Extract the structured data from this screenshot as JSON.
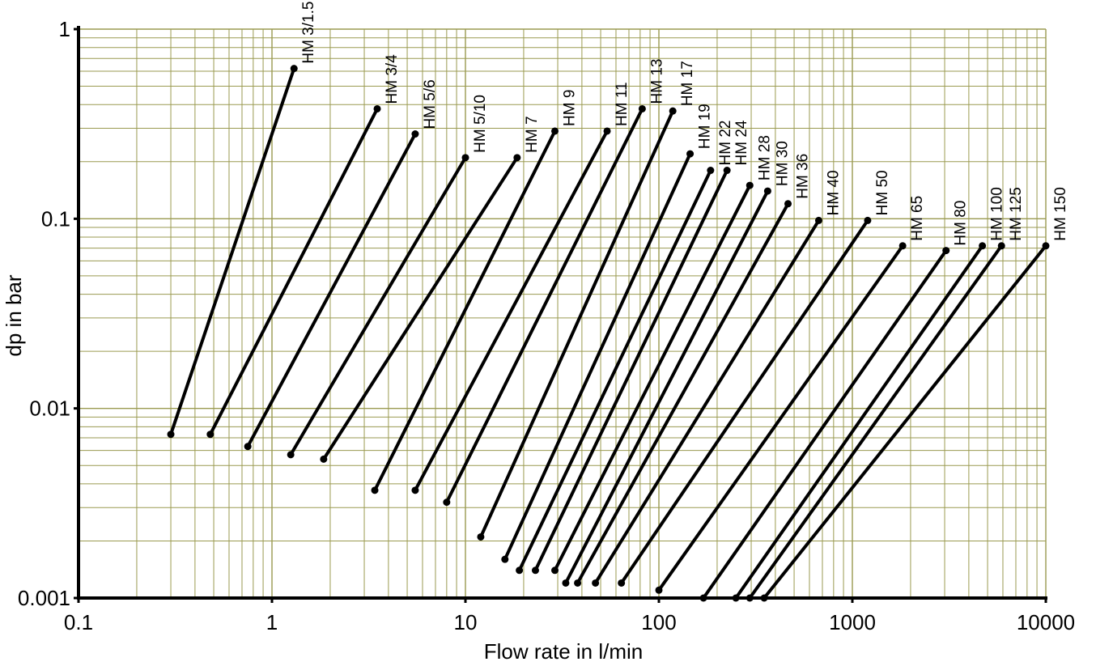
{
  "chart_data": {
    "type": "line",
    "title": "",
    "xlabel": "Flow rate in l/min",
    "ylabel": "dp in bar",
    "x_scale": "log",
    "y_scale": "log",
    "xlim": [
      0.1,
      10000
    ],
    "ylim": [
      0.001,
      1
    ],
    "x_ticks": [
      "0.1",
      "1",
      "10",
      "100",
      "1000",
      "10000"
    ],
    "y_ticks": [
      "0.001",
      "0.01",
      "0.1",
      "1"
    ],
    "grid": true,
    "colors": {
      "grid": "#9a9a50",
      "line": "#000000",
      "axis": "#000000"
    },
    "series": [
      {
        "name": "HM 3/1.5",
        "points": [
          [
            0.3,
            0.0073
          ],
          [
            1.3,
            0.62
          ]
        ]
      },
      {
        "name": "HM 3/4",
        "points": [
          [
            0.48,
            0.0073
          ],
          [
            3.5,
            0.38
          ]
        ]
      },
      {
        "name": "HM 5/6",
        "points": [
          [
            0.75,
            0.0063
          ],
          [
            5.5,
            0.28
          ]
        ]
      },
      {
        "name": "HM 5/10",
        "points": [
          [
            1.25,
            0.0057
          ],
          [
            10,
            0.21
          ]
        ]
      },
      {
        "name": "HM 7",
        "points": [
          [
            1.85,
            0.0054
          ],
          [
            18.5,
            0.21
          ]
        ]
      },
      {
        "name": "HM 9",
        "points": [
          [
            3.4,
            0.0037
          ],
          [
            29,
            0.29
          ]
        ]
      },
      {
        "name": "HM 11",
        "points": [
          [
            5.5,
            0.0037
          ],
          [
            54,
            0.29
          ]
        ]
      },
      {
        "name": "HM 13",
        "points": [
          [
            8,
            0.0032
          ],
          [
            82,
            0.38
          ]
        ]
      },
      {
        "name": "HM 17",
        "points": [
          [
            12,
            0.0021
          ],
          [
            118,
            0.37
          ]
        ]
      },
      {
        "name": "HM 19",
        "points": [
          [
            16,
            0.0016
          ],
          [
            145,
            0.22
          ]
        ]
      },
      {
        "name": "HM 22",
        "points": [
          [
            19,
            0.0014
          ],
          [
            185,
            0.18
          ]
        ]
      },
      {
        "name": "HM 24",
        "points": [
          [
            23,
            0.0014
          ],
          [
            225,
            0.18
          ]
        ]
      },
      {
        "name": "HM 28",
        "points": [
          [
            29,
            0.0014
          ],
          [
            295,
            0.15
          ]
        ]
      },
      {
        "name": "HM 30",
        "points": [
          [
            33,
            0.0012
          ],
          [
            365,
            0.14
          ]
        ]
      },
      {
        "name": "HM 36",
        "points": [
          [
            38,
            0.0012
          ],
          [
            465,
            0.12
          ]
        ]
      },
      {
        "name": "HM 40",
        "points": [
          [
            47,
            0.0012
          ],
          [
            670,
            0.098
          ]
        ]
      },
      {
        "name": "HM 50",
        "points": [
          [
            64,
            0.0012
          ],
          [
            1200,
            0.098
          ]
        ]
      },
      {
        "name": "HM 65",
        "points": [
          [
            100,
            0.0011
          ],
          [
            1820,
            0.072
          ]
        ]
      },
      {
        "name": "HM 80",
        "points": [
          [
            170,
            0.001
          ],
          [
            3050,
            0.068
          ]
        ]
      },
      {
        "name": "HM 100",
        "points": [
          [
            250,
            0.001
          ],
          [
            4700,
            0.072
          ]
        ]
      },
      {
        "name": "HM 125",
        "points": [
          [
            295,
            0.001
          ],
          [
            5900,
            0.072
          ]
        ]
      },
      {
        "name": "HM 150",
        "points": [
          [
            350,
            0.001
          ],
          [
            10000,
            0.072
          ]
        ]
      }
    ]
  }
}
